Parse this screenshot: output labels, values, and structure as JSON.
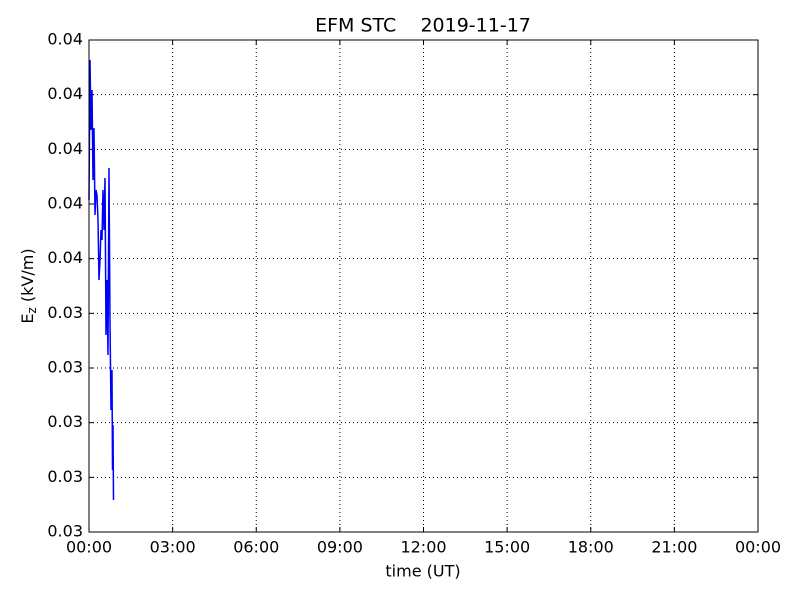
{
  "chart_data": {
    "type": "line",
    "title": "EFM STC    2019-11-17",
    "xlabel": "time (UT)",
    "ylabel": {
      "base": "E",
      "sub": "z",
      "unit": " (kV/m)"
    },
    "x": [
      0,
      0.036,
      0.072,
      0.108,
      0.143,
      0.179,
      0.215,
      0.251,
      0.287,
      0.323,
      0.359,
      0.395,
      0.43,
      0.466,
      0.502,
      0.538,
      0.574,
      0.61,
      0.646,
      0.681,
      0.717,
      0.753,
      0.789,
      0.825,
      0.843,
      0.861,
      0.879
    ],
    "series": [
      {
        "color": "#0000ff",
        "values": [
          0.035537,
          0.036817,
          0.036177,
          0.036543,
          0.03572,
          0.036195,
          0.0354,
          0.035628,
          0.035582,
          0.035354,
          0.034805,
          0.034988,
          0.035262,
          0.035171,
          0.035628,
          0.035262,
          0.035738,
          0.034302,
          0.034805,
          0.034119,
          0.035829,
          0.034439,
          0.033616,
          0.033982,
          0.033067,
          0.033479,
          0.032793
        ]
      }
    ],
    "xlim": [
      0,
      24
    ],
    "xticks": [
      {
        "value": 0,
        "label": "00:00"
      },
      {
        "value": 3,
        "label": "03:00"
      },
      {
        "value": 6,
        "label": "06:00"
      },
      {
        "value": 9,
        "label": "09:00"
      },
      {
        "value": 12,
        "label": "12:00"
      },
      {
        "value": 15,
        "label": "15:00"
      },
      {
        "value": 18,
        "label": "18:00"
      },
      {
        "value": 21,
        "label": "21:00"
      },
      {
        "value": 24,
        "label": "00:00"
      }
    ],
    "ylim": [
      0.0325,
      0.037
    ],
    "yticks": [
      {
        "value": 0.0325,
        "label": "0.03"
      },
      {
        "value": 0.033,
        "label": "0.03"
      },
      {
        "value": 0.0335,
        "label": "0.03"
      },
      {
        "value": 0.034,
        "label": "0.03"
      },
      {
        "value": 0.0345,
        "label": "0.03"
      },
      {
        "value": 0.035,
        "label": "0.04"
      },
      {
        "value": 0.0355,
        "label": "0.04"
      },
      {
        "value": 0.036,
        "label": "0.04"
      },
      {
        "value": 0.0365,
        "label": "0.04"
      },
      {
        "value": 0.037,
        "label": "0.04"
      }
    ],
    "grid": true
  }
}
